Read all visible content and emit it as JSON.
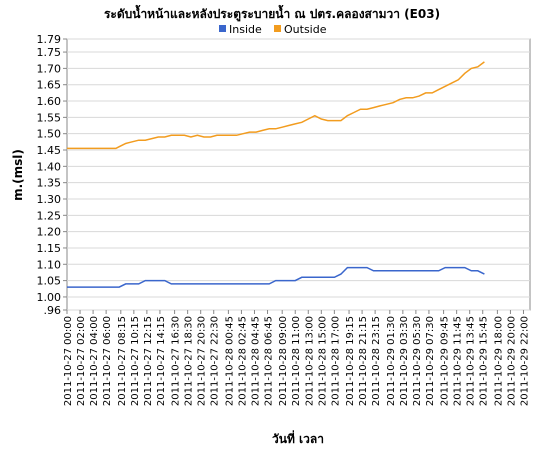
{
  "chart_data": {
    "type": "line",
    "title": "ระดับน้ำหน้าและหลังประตูระบายน้ำ ณ ปตร.คลองสามวา (E03)",
    "xlabel": "วันที่ เวลา",
    "ylabel": "m.(msl)",
    "ylim": [
      0.96,
      1.79
    ],
    "yticks": [
      ".96",
      "1.00",
      "1.05",
      "1.10",
      "1.15",
      "1.20",
      "1.25",
      "1.30",
      "1.35",
      "1.40",
      "1.45",
      "1.50",
      "1.55",
      "1.60",
      "1.65",
      "1.70",
      "1.75",
      "1.79"
    ],
    "xlim": [
      "2011-10-27 00:00",
      "2011-10-29 23:00"
    ],
    "x_tick_labels": [
      "2011-10-27 00:00",
      "2011-10-27 02:00",
      "2011-10-27 04:00",
      "2011-10-27 06:00",
      "2011-10-27 08:15",
      "2011-10-27 10:15",
      "2011-10-27 12:15",
      "2011-10-27 14:15",
      "2011-10-27 16:30",
      "2011-10-27 18:30",
      "2011-10-27 20:30",
      "2011-10-27 22:30",
      "2011-10-28 00:45",
      "2011-10-28 02:45",
      "2011-10-28 04:45",
      "2011-10-28 06:45",
      "2011-10-28 09:00",
      "2011-10-28 11:00",
      "2011-10-28 13:00",
      "2011-10-28 15:00",
      "2011-10-28 17:00",
      "2011-10-28 19:15",
      "2011-10-28 21:15",
      "2011-10-28 23:15",
      "2011-10-29 01:30",
      "2011-10-29 03:30",
      "2011-10-29 05:30",
      "2011-10-29 07:30",
      "2011-10-29 09:45",
      "2011-10-29 11:45",
      "2011-10-29 13:45",
      "2011-10-29 15:45",
      "2011-10-29 18:00",
      "2011-10-29 20:00",
      "2011-10-29 22:00"
    ],
    "grid": true,
    "legend_position": "top-center",
    "series": [
      {
        "name": "Inside",
        "color": "#3a66cc",
        "points": [
          [
            "2011-10-27 00:00",
            1.03
          ],
          [
            "2011-10-27 01:00",
            1.03
          ],
          [
            "2011-10-27 02:00",
            1.03
          ],
          [
            "2011-10-27 03:00",
            1.03
          ],
          [
            "2011-10-27 04:00",
            1.03
          ],
          [
            "2011-10-27 05:00",
            1.03
          ],
          [
            "2011-10-27 06:00",
            1.03
          ],
          [
            "2011-10-27 07:00",
            1.03
          ],
          [
            "2011-10-27 08:00",
            1.03
          ],
          [
            "2011-10-27 09:00",
            1.04
          ],
          [
            "2011-10-27 10:00",
            1.04
          ],
          [
            "2011-10-27 11:00",
            1.04
          ],
          [
            "2011-10-27 12:00",
            1.05
          ],
          [
            "2011-10-27 13:00",
            1.05
          ],
          [
            "2011-10-27 14:00",
            1.05
          ],
          [
            "2011-10-27 15:00",
            1.05
          ],
          [
            "2011-10-27 16:00",
            1.04
          ],
          [
            "2011-10-27 17:00",
            1.04
          ],
          [
            "2011-10-27 18:00",
            1.04
          ],
          [
            "2011-10-27 19:00",
            1.04
          ],
          [
            "2011-10-27 20:00",
            1.04
          ],
          [
            "2011-10-27 21:00",
            1.04
          ],
          [
            "2011-10-27 22:00",
            1.04
          ],
          [
            "2011-10-27 23:00",
            1.04
          ],
          [
            "2011-10-28 00:00",
            1.04
          ],
          [
            "2011-10-28 01:00",
            1.04
          ],
          [
            "2011-10-28 02:00",
            1.04
          ],
          [
            "2011-10-28 03:00",
            1.04
          ],
          [
            "2011-10-28 04:00",
            1.04
          ],
          [
            "2011-10-28 05:00",
            1.04
          ],
          [
            "2011-10-28 06:00",
            1.04
          ],
          [
            "2011-10-28 07:00",
            1.04
          ],
          [
            "2011-10-28 08:00",
            1.05
          ],
          [
            "2011-10-28 09:00",
            1.05
          ],
          [
            "2011-10-28 10:00",
            1.05
          ],
          [
            "2011-10-28 11:00",
            1.05
          ],
          [
            "2011-10-28 12:00",
            1.06
          ],
          [
            "2011-10-28 13:00",
            1.06
          ],
          [
            "2011-10-28 14:00",
            1.06
          ],
          [
            "2011-10-28 15:00",
            1.06
          ],
          [
            "2011-10-28 16:00",
            1.06
          ],
          [
            "2011-10-28 17:00",
            1.06
          ],
          [
            "2011-10-28 18:00",
            1.07
          ],
          [
            "2011-10-28 19:00",
            1.09
          ],
          [
            "2011-10-28 20:00",
            1.09
          ],
          [
            "2011-10-28 21:00",
            1.09
          ],
          [
            "2011-10-28 22:00",
            1.09
          ],
          [
            "2011-10-28 23:00",
            1.08
          ],
          [
            "2011-10-29 00:00",
            1.08
          ],
          [
            "2011-10-29 01:00",
            1.08
          ],
          [
            "2011-10-29 02:00",
            1.08
          ],
          [
            "2011-10-29 03:00",
            1.08
          ],
          [
            "2011-10-29 04:00",
            1.08
          ],
          [
            "2011-10-29 05:00",
            1.08
          ],
          [
            "2011-10-29 06:00",
            1.08
          ],
          [
            "2011-10-29 07:00",
            1.08
          ],
          [
            "2011-10-29 08:00",
            1.08
          ],
          [
            "2011-10-29 09:00",
            1.08
          ],
          [
            "2011-10-29 10:00",
            1.09
          ],
          [
            "2011-10-29 11:00",
            1.09
          ],
          [
            "2011-10-29 12:00",
            1.09
          ],
          [
            "2011-10-29 13:00",
            1.09
          ],
          [
            "2011-10-29 14:00",
            1.08
          ],
          [
            "2011-10-29 15:00",
            1.08
          ],
          [
            "2011-10-29 16:00",
            1.07
          ]
        ]
      },
      {
        "name": "Outside",
        "color": "#f29c1f",
        "points": [
          [
            "2011-10-27 00:00",
            1.455
          ],
          [
            "2011-10-27 02:00",
            1.455
          ],
          [
            "2011-10-27 04:00",
            1.455
          ],
          [
            "2011-10-27 06:00",
            1.455
          ],
          [
            "2011-10-27 07:30",
            1.455
          ],
          [
            "2011-10-27 08:00",
            1.46
          ],
          [
            "2011-10-27 09:00",
            1.47
          ],
          [
            "2011-10-27 10:00",
            1.475
          ],
          [
            "2011-10-27 11:00",
            1.48
          ],
          [
            "2011-10-27 12:00",
            1.48
          ],
          [
            "2011-10-27 13:00",
            1.485
          ],
          [
            "2011-10-27 14:00",
            1.49
          ],
          [
            "2011-10-27 15:00",
            1.49
          ],
          [
            "2011-10-27 16:00",
            1.495
          ],
          [
            "2011-10-27 17:00",
            1.495
          ],
          [
            "2011-10-27 18:00",
            1.495
          ],
          [
            "2011-10-27 19:00",
            1.49
          ],
          [
            "2011-10-27 20:00",
            1.495
          ],
          [
            "2011-10-27 21:00",
            1.49
          ],
          [
            "2011-10-27 22:00",
            1.49
          ],
          [
            "2011-10-27 23:00",
            1.495
          ],
          [
            "2011-10-28 00:00",
            1.495
          ],
          [
            "2011-10-28 01:00",
            1.495
          ],
          [
            "2011-10-28 02:00",
            1.495
          ],
          [
            "2011-10-28 03:00",
            1.5
          ],
          [
            "2011-10-28 04:00",
            1.505
          ],
          [
            "2011-10-28 05:00",
            1.505
          ],
          [
            "2011-10-28 06:00",
            1.51
          ],
          [
            "2011-10-28 07:00",
            1.515
          ],
          [
            "2011-10-28 08:00",
            1.515
          ],
          [
            "2011-10-28 09:00",
            1.52
          ],
          [
            "2011-10-28 10:00",
            1.525
          ],
          [
            "2011-10-28 11:00",
            1.53
          ],
          [
            "2011-10-28 12:00",
            1.535
          ],
          [
            "2011-10-28 13:00",
            1.545
          ],
          [
            "2011-10-28 14:00",
            1.555
          ],
          [
            "2011-10-28 15:00",
            1.545
          ],
          [
            "2011-10-28 16:00",
            1.54
          ],
          [
            "2011-10-28 17:00",
            1.54
          ],
          [
            "2011-10-28 18:00",
            1.54
          ],
          [
            "2011-10-28 19:00",
            1.555
          ],
          [
            "2011-10-28 20:00",
            1.565
          ],
          [
            "2011-10-28 21:00",
            1.575
          ],
          [
            "2011-10-28 22:00",
            1.575
          ],
          [
            "2011-10-28 23:00",
            1.58
          ],
          [
            "2011-10-29 00:00",
            1.585
          ],
          [
            "2011-10-29 01:00",
            1.59
          ],
          [
            "2011-10-29 02:00",
            1.595
          ],
          [
            "2011-10-29 03:00",
            1.605
          ],
          [
            "2011-10-29 04:00",
            1.61
          ],
          [
            "2011-10-29 05:00",
            1.61
          ],
          [
            "2011-10-29 06:00",
            1.615
          ],
          [
            "2011-10-29 07:00",
            1.625
          ],
          [
            "2011-10-29 08:00",
            1.625
          ],
          [
            "2011-10-29 09:00",
            1.635
          ],
          [
            "2011-10-29 10:00",
            1.645
          ],
          [
            "2011-10-29 11:00",
            1.655
          ],
          [
            "2011-10-29 12:00",
            1.665
          ],
          [
            "2011-10-29 13:00",
            1.685
          ],
          [
            "2011-10-29 14:00",
            1.7
          ],
          [
            "2011-10-29 15:00",
            1.705
          ],
          [
            "2011-10-29 16:00",
            1.72
          ]
        ]
      }
    ]
  }
}
